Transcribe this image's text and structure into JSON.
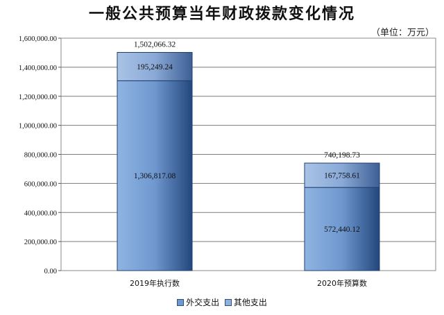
{
  "chart_data": {
    "type": "bar",
    "stacked": true,
    "title": "一般公共预算当年财政拨款变化情况",
    "unit": "（单位：万元）",
    "categories": [
      "2019年执行数",
      "2020年预算数"
    ],
    "series": [
      {
        "name": "外交支出",
        "values": [
          1306817.08,
          572440.12
        ],
        "labels": [
          "1,306,817.08",
          "572,440.12"
        ],
        "color": "#6f98cf"
      },
      {
        "name": "其他支出",
        "values": [
          195249.24,
          167758.61
        ],
        "labels": [
          "195,249.24",
          "167,758.61"
        ],
        "color": "#8fb0da"
      }
    ],
    "totals": [
      "1,502,066.32",
      "740,198.73"
    ],
    "ylim": [
      0,
      1600000
    ],
    "yticks": [
      "0.00",
      "200,000.00",
      "400,000.00",
      "600,000.00",
      "800,000.00",
      "1,000,000.00",
      "1,200,000.00",
      "1,400,000.00",
      "1,600,000.00"
    ],
    "grid": true,
    "legend": "bottom"
  }
}
